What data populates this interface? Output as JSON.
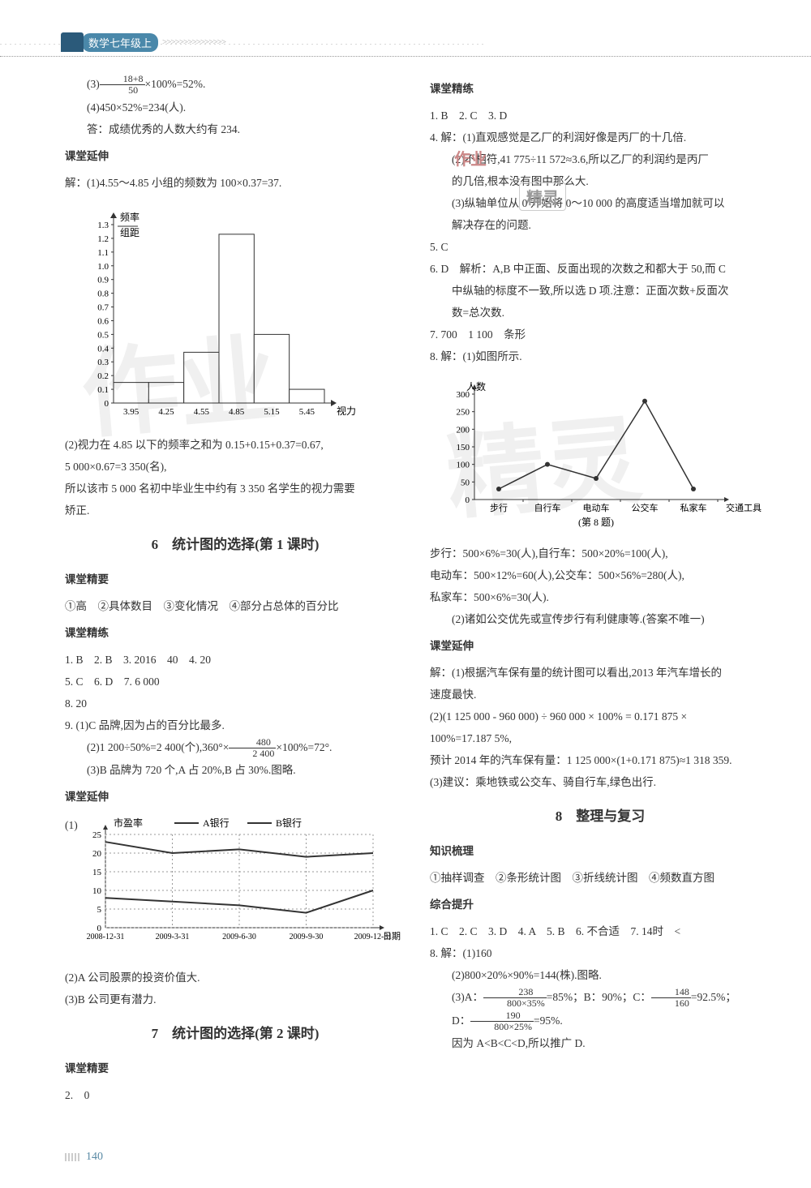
{
  "header": {
    "badge_text": "数学七年级上",
    "arrows": ">>>>>>>>>>>>>>>"
  },
  "page_number": "140",
  "watermarks": {
    "wm1": "作业",
    "wm2": "精灵",
    "wm3": "作业",
    "wm4": "精灵"
  },
  "left_col": {
    "l1_pre": "(3)",
    "l1_frac_n": "18+8",
    "l1_frac_d": "50",
    "l1_post": "×100%=52%.",
    "l2": "(4)450×52%=234(人).",
    "l3": "答：成绩优秀的人数大约有 234.",
    "sec1": "课堂延伸",
    "l4": "解：(1)4.55～4.85 小组的频数为 100×0.37=37.",
    "chart1": {
      "ylabel_top": "频率",
      "ylabel_bot": "组距",
      "yticks": [
        "1.3",
        "1.2",
        "1.1",
        "1.0",
        "0.9",
        "0.8",
        "0.7",
        "0.6",
        "0.5",
        "0.4",
        "0.3",
        "0.2",
        "0.1",
        "0"
      ],
      "xticks": [
        "3.95",
        "4.25",
        "4.55",
        "4.85",
        "5.15",
        "5.45"
      ],
      "xlabel": "视力",
      "bars": [
        0.15,
        0.15,
        0.37,
        1.23,
        0.5,
        0.1
      ],
      "bar_color": "#ffffff",
      "bar_border": "#333",
      "axis_color": "#333"
    },
    "l5": "(2)视力在 4.85 以下的频率之和为 0.15+0.15+0.37=0.67,",
    "l6": "5 000×0.67=3 350(名),",
    "l7": "所以该市 5 000 名初中毕业生中约有 3 350 名学生的视力需要",
    "l8": "矫正.",
    "chapter1": "6　统计图的选择(第 1 课时)",
    "sec2": "课堂精要",
    "l9": "①高　②具体数目　③变化情况　④部分占总体的百分比",
    "sec3": "课堂精练",
    "l10": "1. B　2. B　3. 2016　40　4. 20",
    "l11": "5. C　6. D　7. 6 000",
    "l12": "8. 20",
    "l13": "9. (1)C 品牌,因为占的百分比最多.",
    "l14_pre": "(2)1 200÷50%=2 400(个),360°×",
    "l14_frac_n": "480",
    "l14_frac_d": "2 400",
    "l14_post": "×100%=72°.",
    "l15": "(3)B 品牌为 720 个,A 占 20%,B 占 30%.图略.",
    "sec4": "课堂延伸",
    "chart2": {
      "title_left": "市盈率",
      "legend_a": "A银行",
      "legend_b": "B银行",
      "yticks": [
        "25",
        "20",
        "15",
        "10",
        "5",
        "0"
      ],
      "xticks": [
        "2008-12-31",
        "2009-3-31",
        "2009-6-30",
        "2009-9-30",
        "2009-12-31"
      ],
      "xlabel": "日期",
      "series_a": [
        23,
        20,
        21,
        19,
        20
      ],
      "series_b": [
        8,
        7,
        6,
        4,
        10
      ],
      "grid_color": "#999",
      "line_color": "#333"
    },
    "l16": "(1)",
    "l17": "(2)A 公司股票的投资价值大.",
    "l18": "(3)B 公司更有潜力.",
    "chapter2": "7　统计图的选择(第 2 课时)",
    "sec5": "课堂精要",
    "l19": "2.　0"
  },
  "right_col": {
    "sec1": "课堂精练",
    "r1": "1. B　2. C　3. D",
    "r2": "4. 解：(1)直观感觉是乙厂的利润好像是丙厂的十几倍.",
    "r3": "(2)不相符,41 775÷11 572≈3.6,所以乙厂的利润约是丙厂",
    "r4": "的几倍,根本没有图中那么大.",
    "r5": "(3)纵轴单位从 0 开始将 0～10 000 的高度适当增加就可以",
    "r6": "解决存在的问题.",
    "r7": "5. C",
    "r8": "6. D　解析：A,B 中正面、反面出现的次数之和都大于 50,而 C",
    "r9": "中纵轴的标度不一致,所以选 D 项.注意：正面次数+反面次",
    "r10": "数=总次数.",
    "r11": "7. 700　1 100　条形",
    "r12": "8. 解：(1)如图所示.",
    "chart3": {
      "ylabel": "人数",
      "yticks": [
        "300",
        "250",
        "200",
        "150",
        "100",
        "50",
        "0"
      ],
      "xticks": [
        "步行",
        "自行车",
        "电动车",
        "公交车",
        "私家车"
      ],
      "xlabel": "交通工具",
      "caption": "(第 8 题)",
      "values": [
        30,
        100,
        60,
        280,
        30
      ],
      "line_color": "#333",
      "axis_color": "#333"
    },
    "r13": "步行：500×6%=30(人),自行车：500×20%=100(人),",
    "r14": "电动车：500×12%=60(人),公交车：500×56%=280(人),",
    "r15": "私家车：500×6%=30(人).",
    "r16": "(2)诸如公交优先或宣传步行有利健康等.(答案不唯一)",
    "sec2": "课堂延伸",
    "r17": "解：(1)根据汽车保有量的统计图可以看出,2013 年汽车增长的",
    "r18": "速度最快.",
    "r19": "(2)(1 125 000 - 960 000) ÷ 960 000 × 100% = 0.171 875 ×",
    "r20": "100%=17.187 5%,",
    "r21": "预计 2014 年的汽车保有量：1 125 000×(1+0.171 875)≈1 318 359.",
    "r22": "(3)建议：乘地铁或公交车、骑自行车,绿色出行.",
    "chapter1": "8　整理与复习",
    "sec3": "知识梳理",
    "r23": "①抽样调查　②条形统计图　③折线统计图　④频数直方图",
    "sec4": "综合提升",
    "r24": "1. C　2. C　3. D　4. A　5. B　6. 不合适　7. 14时　<",
    "r25": "8. 解：(1)160",
    "r26": "(2)800×20%×90%=144(株).图略.",
    "r27_pre": "(3)A：",
    "r27_fn1": "238",
    "r27_fd1": "800×35%",
    "r27_mid": "=85%；B：90%；C：",
    "r27_fn2": "148",
    "r27_fd2": "160",
    "r27_post": "=92.5%；",
    "r28_pre": "D：",
    "r28_fn": "190",
    "r28_fd": "800×25%",
    "r28_post": "=95%.",
    "r29": "因为 A<B<C<D,所以推广 D."
  }
}
